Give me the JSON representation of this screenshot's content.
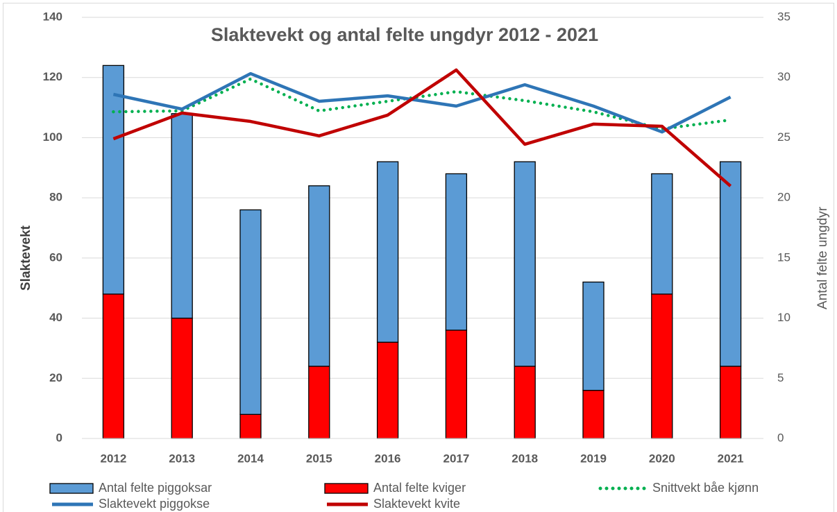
{
  "chart_data": {
    "type": "bar",
    "title": "Slaktevekt og antal felte ungdyr 2012 - 2021",
    "y_label": "Slaktevekt",
    "y2_label": "Antal felte ungdyr",
    "categories": [
      "2012",
      "2013",
      "2014",
      "2015",
      "2016",
      "2017",
      "2018",
      "2019",
      "2020",
      "2021"
    ],
    "ylim": [
      0,
      140
    ],
    "yticks": [
      0,
      20,
      40,
      60,
      80,
      100,
      120,
      140
    ],
    "y2lim": [
      0,
      35
    ],
    "y2ticks": [
      0,
      5,
      10,
      15,
      20,
      25,
      30,
      35
    ],
    "grid": true,
    "legend": "bottom",
    "stacked": true,
    "series": [
      {
        "name": "Antal felte piggoksar",
        "type": "bar",
        "axis": "y2",
        "color": "#5b9bd5",
        "values": [
          19,
          17,
          17,
          15,
          15,
          13,
          17,
          9,
          10,
          17
        ]
      },
      {
        "name": "Antal felte kviger",
        "type": "bar",
        "axis": "y2",
        "color": "#ff0000",
        "values": [
          12,
          10,
          2,
          6,
          8,
          9,
          6,
          4,
          12,
          6
        ]
      },
      {
        "name": "Snittvekt båe kjønn",
        "type": "line",
        "axis": "y",
        "color": "#00b050",
        "dash": "dotted",
        "values": [
          108.6,
          108.9,
          119.5,
          108.9,
          112.1,
          115.3,
          112.3,
          108.6,
          102.9,
          105.9
        ]
      },
      {
        "name": "Slaktevekt piggokse",
        "type": "line",
        "axis": "y",
        "color": "#2e75b6",
        "values": [
          114.4,
          109.5,
          121.3,
          112.1,
          113.9,
          110.5,
          117.6,
          110.5,
          101.9,
          113.5
        ]
      },
      {
        "name": "Slaktevekt kvite",
        "type": "line",
        "axis": "y",
        "color": "#c00000",
        "values": [
          99.6,
          108.2,
          105.4,
          100.6,
          107.5,
          122.5,
          97.8,
          104.5,
          103.8,
          83.9
        ]
      }
    ]
  }
}
